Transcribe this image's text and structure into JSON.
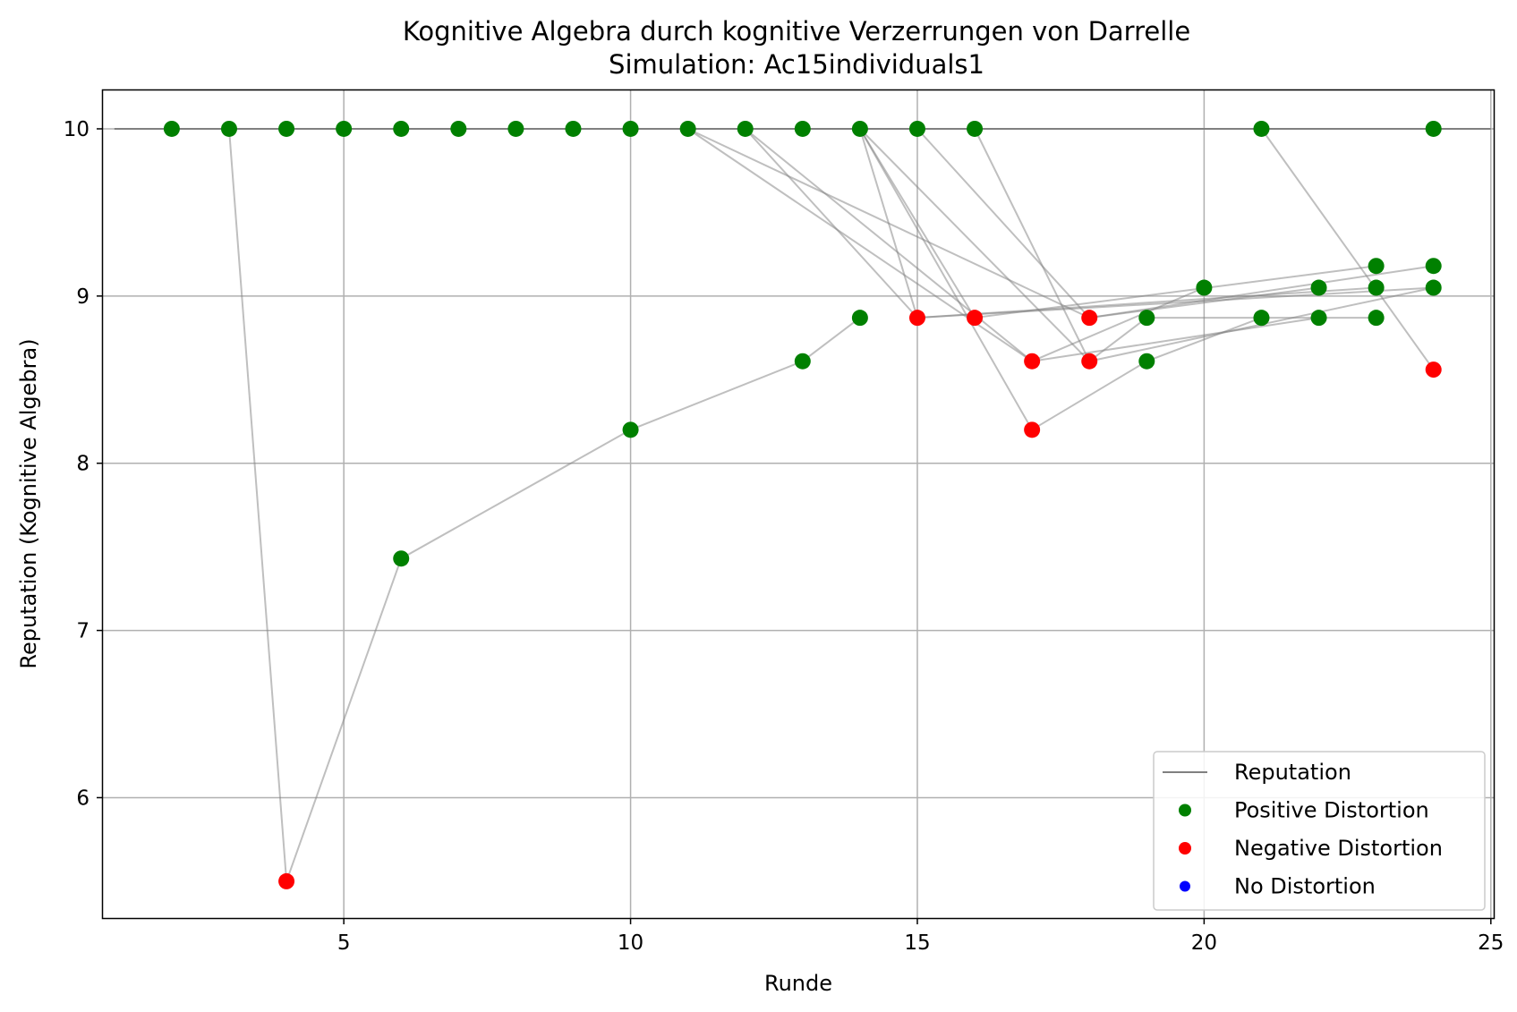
{
  "chart_data": {
    "type": "scatter",
    "title": "Kognitive Algebra durch kognitive Verzerrungen von Darrelle",
    "subtitle": "Simulation: Ac15individuals1",
    "xlabel": "Runde",
    "ylabel": "Reputation (Kognitive Algebra)",
    "xlim": [
      0.8,
      25.05
    ],
    "ylim": [
      5.28,
      10.23
    ],
    "xticks": [
      5,
      10,
      15,
      20,
      25
    ],
    "yticks": [
      6,
      7,
      8,
      9,
      10
    ],
    "grid": true,
    "legend_position": "lower right",
    "legend": [
      {
        "label": "Reputation",
        "kind": "line",
        "color": "#808080"
      },
      {
        "label": "Positive Distortion",
        "kind": "marker",
        "color": "#008000"
      },
      {
        "label": "Negative Distortion",
        "kind": "marker",
        "color": "#ff0000"
      },
      {
        "label": "No Distortion",
        "kind": "marker",
        "color": "#0000ff"
      }
    ],
    "colors": {
      "positive": "#008000",
      "negative": "#ff0000",
      "none": "#0000ff",
      "line": "#808080"
    },
    "reputation_line": {
      "x": [
        1,
        25
      ],
      "y": [
        10.0,
        10.0
      ]
    },
    "trajectories": [
      [
        [
          2,
          10.0
        ],
        [
          3,
          10.0
        ],
        [
          4,
          5.5
        ],
        [
          6,
          7.43
        ],
        [
          10,
          8.2
        ],
        [
          13,
          8.61
        ],
        [
          14,
          8.87
        ]
      ],
      [
        [
          3,
          10.0
        ],
        [
          4,
          10.0
        ],
        [
          5,
          10.0
        ],
        [
          6,
          10.0
        ],
        [
          7,
          10.0
        ],
        [
          8,
          10.0
        ],
        [
          9,
          10.0
        ],
        [
          10,
          10.0
        ],
        [
          11,
          10.0
        ],
        [
          12,
          10.0
        ],
        [
          13,
          10.0
        ],
        [
          14,
          10.0
        ],
        [
          15,
          10.0
        ],
        [
          16,
          10.0
        ],
        [
          21,
          10.0
        ],
        [
          24,
          10.0
        ]
      ],
      [
        [
          11,
          10.0
        ],
        [
          17,
          8.61
        ],
        [
          20,
          9.05
        ]
      ],
      [
        [
          11,
          10.0
        ],
        [
          18,
          8.87
        ],
        [
          22,
          9.05
        ]
      ],
      [
        [
          12,
          10.0
        ],
        [
          15,
          8.87
        ],
        [
          23,
          9.05
        ]
      ],
      [
        [
          12,
          10.0
        ],
        [
          17,
          8.61
        ],
        [
          22,
          8.87
        ]
      ],
      [
        [
          14,
          10.0
        ],
        [
          15,
          8.87
        ],
        [
          24,
          9.05
        ]
      ],
      [
        [
          14,
          10.0
        ],
        [
          16,
          8.87
        ],
        [
          23,
          9.18
        ]
      ],
      [
        [
          14,
          10.0
        ],
        [
          17,
          8.2
        ],
        [
          19,
          8.61
        ],
        [
          21,
          8.87
        ]
      ],
      [
        [
          14,
          10.0
        ],
        [
          18,
          8.61
        ],
        [
          19,
          8.87
        ],
        [
          23,
          8.87
        ]
      ],
      [
        [
          15,
          10.0
        ],
        [
          18,
          8.87
        ],
        [
          24,
          9.18
        ]
      ],
      [
        [
          16,
          10.0
        ],
        [
          18,
          8.61
        ],
        [
          24,
          9.05
        ]
      ],
      [
        [
          21,
          10.0
        ],
        [
          24,
          8.56
        ]
      ]
    ],
    "points": [
      {
        "x": 2,
        "y": 10.0,
        "distortion": "positive"
      },
      {
        "x": 3,
        "y": 10.0,
        "distortion": "positive"
      },
      {
        "x": 4,
        "y": 10.0,
        "distortion": "positive"
      },
      {
        "x": 4,
        "y": 5.5,
        "distortion": "negative"
      },
      {
        "x": 5,
        "y": 10.0,
        "distortion": "positive"
      },
      {
        "x": 6,
        "y": 10.0,
        "distortion": "positive"
      },
      {
        "x": 6,
        "y": 7.43,
        "distortion": "positive"
      },
      {
        "x": 7,
        "y": 10.0,
        "distortion": "positive"
      },
      {
        "x": 8,
        "y": 10.0,
        "distortion": "positive"
      },
      {
        "x": 9,
        "y": 10.0,
        "distortion": "positive"
      },
      {
        "x": 10,
        "y": 10.0,
        "distortion": "positive"
      },
      {
        "x": 10,
        "y": 8.2,
        "distortion": "positive"
      },
      {
        "x": 11,
        "y": 10.0,
        "distortion": "positive"
      },
      {
        "x": 12,
        "y": 10.0,
        "distortion": "positive"
      },
      {
        "x": 13,
        "y": 10.0,
        "distortion": "positive"
      },
      {
        "x": 13,
        "y": 8.61,
        "distortion": "positive"
      },
      {
        "x": 14,
        "y": 10.0,
        "distortion": "positive"
      },
      {
        "x": 14,
        "y": 8.87,
        "distortion": "positive"
      },
      {
        "x": 15,
        "y": 10.0,
        "distortion": "positive"
      },
      {
        "x": 15,
        "y": 8.87,
        "distortion": "negative"
      },
      {
        "x": 16,
        "y": 10.0,
        "distortion": "positive"
      },
      {
        "x": 16,
        "y": 8.87,
        "distortion": "negative"
      },
      {
        "x": 17,
        "y": 8.61,
        "distortion": "negative"
      },
      {
        "x": 17,
        "y": 8.2,
        "distortion": "negative"
      },
      {
        "x": 18,
        "y": 8.87,
        "distortion": "negative"
      },
      {
        "x": 18,
        "y": 8.61,
        "distortion": "negative"
      },
      {
        "x": 19,
        "y": 8.87,
        "distortion": "positive"
      },
      {
        "x": 19,
        "y": 8.61,
        "distortion": "positive"
      },
      {
        "x": 20,
        "y": 9.05,
        "distortion": "positive"
      },
      {
        "x": 21,
        "y": 10.0,
        "distortion": "positive"
      },
      {
        "x": 21,
        "y": 8.87,
        "distortion": "positive"
      },
      {
        "x": 22,
        "y": 9.05,
        "distortion": "positive"
      },
      {
        "x": 22,
        "y": 8.87,
        "distortion": "positive"
      },
      {
        "x": 23,
        "y": 9.18,
        "distortion": "positive"
      },
      {
        "x": 23,
        "y": 9.05,
        "distortion": "positive"
      },
      {
        "x": 23,
        "y": 8.87,
        "distortion": "positive"
      },
      {
        "x": 24,
        "y": 10.0,
        "distortion": "positive"
      },
      {
        "x": 24,
        "y": 9.18,
        "distortion": "positive"
      },
      {
        "x": 24,
        "y": 9.05,
        "distortion": "positive"
      },
      {
        "x": 24,
        "y": 8.56,
        "distortion": "negative"
      }
    ]
  }
}
